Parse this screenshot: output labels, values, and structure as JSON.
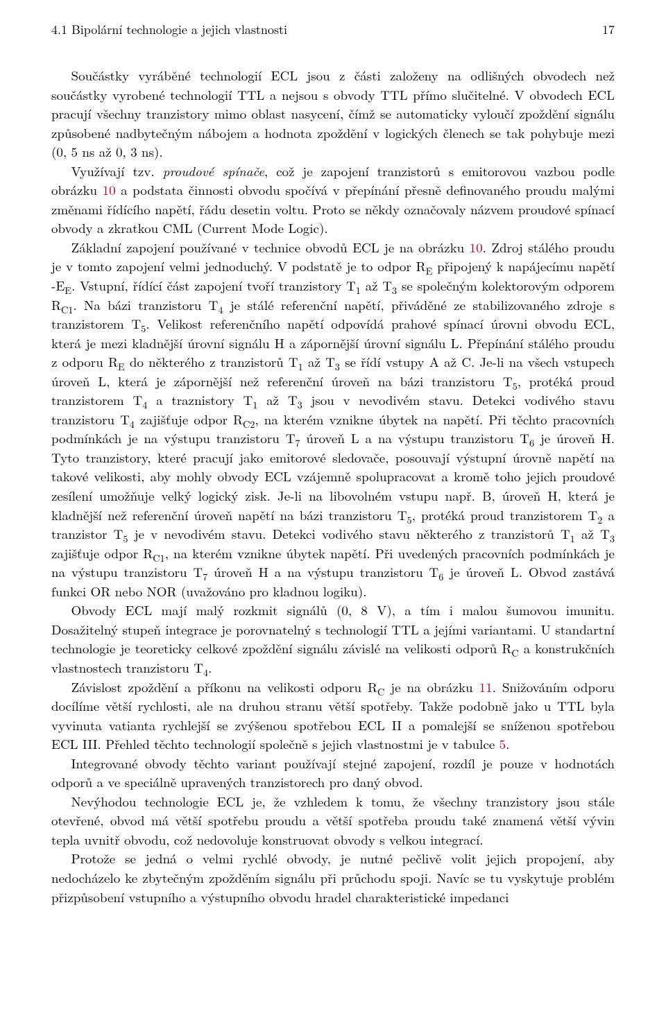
{
  "header": {
    "section": "4.1   Bipolární technologie a jejich vlastnosti",
    "page": "17"
  },
  "body": {
    "p1_a": "Součástky vyráběné technologií ECL jsou z části založeny na odlišných obvodech než součástky vyrobené technologií TTL a nejsou s obvody TTL přímo slučitelné. V obvodech ECL pracují všechny tranzistory mimo oblast nasycení, čímž se automaticky vyloučí zpoždění signálu způsobené nadbytečným nábojem a hodnota zpoždění v logických členech se tak pohybuje mezi (0, 5 ns až 0, 3 ns).",
    "p2_lead": "Využívají tzv. ",
    "p2_em": "proudové spínače",
    "p2_aft_em": ", což je zapojení tranzistorů s emitorovou vazbou podle obrázku ",
    "p2_link1": "10",
    "p2_tail": " a podstata činnosti obvodu spočívá v přepínání přesně definovaného proudu malými změnami řídícího napětí, řádu desetin voltu. Proto se někdy označovaly názvem proudové spínací obvody a zkratkou CML (Current Mode Logic).",
    "p3_a": "Základní zapojení používané v technice obvodů ECL je na obrázku ",
    "p3_link1": "10",
    "p3_b": ". Zdroj stálého proudu je v tomto zapojení velmi jednoduchý. V podstatě je to odpor R",
    "p3_sub1": "E",
    "p3_c": " připojený k  napájecímu napětí -E",
    "p3_sub2": "E",
    "p3_d": ". Vstupní, řídící část zapojení tvoří tranzistory T",
    "p3_sub3": "1",
    "p3_e": " až T",
    "p3_sub4": "3",
    "p3_f": " se společným kolektorovým odporem R",
    "p3_sub5": "C1",
    "p3_g": ". Na bázi tranzistoru T",
    "p3_sub6": "4",
    "p3_h": " je stálé referenční napětí, přiváděné ze stabilizovaného zdroje s tranzistorem T",
    "p3_sub7": "5",
    "p3_i": ". Velikost referenčního napětí odpovídá prahové spínací úrovni obvodu ECL, která je mezi kladnější úrovní signálu H a zápornější úrovní signálu L. Přepínání stálého proudu z odporu R",
    "p3_sub8": "E",
    "p3_j": " do některého z tranzistorů T",
    "p3_sub9": "1",
    "p3_k": " až T",
    "p3_sub10": "3",
    "p3_l": " se řídí vstupy A až C. Je-li na všech vstupech úroveň L, která je zápornější než referenční úroveň na bázi tranzistoru T",
    "p3_sub11": "5",
    "p3_m": ", protéká proud tranzistorem T",
    "p3_sub12": "4",
    "p3_n": " a traznistory T",
    "p3_sub13": "1",
    "p3_o": " až T",
    "p3_sub14": "3",
    "p3_p": " jsou v nevodivém stavu. Detekci vodivého stavu tranzistoru T",
    "p3_sub15": "4",
    "p3_q": " zajišťuje odpor R",
    "p3_sub16": "C2",
    "p3_r": ", na kterém vznikne úbytek na napětí. Při těchto pracovních podmínkách je na výstupu tranzistoru T",
    "p3_sub17": "7",
    "p3_s": " úroveň L a na výstupu tranzistoru T",
    "p3_sub18": "6",
    "p3_t": " je úroveň H. Tyto tranzistory, které pracují jako emitorové sledovače, posouvají výstupní úrovně napětí na takové velikosti, aby mohly obvody ECL vzájemně spolupracovat a kromě toho jejich proudové zesílení umožňuje velký logický zisk. Je-li na libovolném vstupu např. B, úroveň H, která je kladnější než referenční úroveň napětí na  bázi tranzistoru T",
    "p3_sub19": "5",
    "p3_u": ", protéká proud tranzistorem T",
    "p3_sub20": "2",
    "p3_v": " a tranzistor T",
    "p3_sub21": "5",
    "p3_w": " je v nevodivém stavu. Detekci vodivého stavu některého z tranzistorů T",
    "p3_sub22": "1",
    "p3_x": " až T",
    "p3_sub23": "3",
    "p3_y": " zajišťuje odpor R",
    "p3_sub24": "C1",
    "p3_z": ", na kterém vznikne úbytek napětí. Při uvedených pracovních podmínkách je na výstupu tranzistoru T",
    "p3_sub25": "7",
    "p3_aa": " úroveň H a na výstupu tranzistoru T",
    "p3_sub26": "6",
    "p3_ab": " je úroveň L. Obvod zastává funkci OR nebo NOR (uvažováno pro kladnou logiku).",
    "p4_a": "Obvody ECL mají malý rozkmit signálů (0, 8 V), a tím i malou šumovou imunitu. Dosažitelný stupeň integrace je porovnatelný s technologií TTL a jejími variantami. U standartní technologie je teoreticky celkové zpoždění signálu závislé na velikosti odporů R",
    "p4_sub1": "C",
    "p4_b": " a konstrukčních vlastnostech tranzistoru T",
    "p4_sub2": "4",
    "p4_c": ".",
    "p5_a": "Závislost zpoždění a příkonu na velikosti odporu R",
    "p5_sub1": "C",
    "p5_b": " je na obrázku ",
    "p5_link1": "11",
    "p5_c": ". Snižováním odporu docílíme větší rychlosti, ale na druhou stranu větší spotřeby. Takže podobně jako u TTL byla vyvinuta vatianta rychlejší se zvýšenou spotřebou ECL II a pomalejší se sníženou spotřebou ECL III. Přehled těchto technologií společně s jejich vlastnostmi je v tabulce ",
    "p5_link2": "5",
    "p5_d": ".",
    "p6": "Integrované obvody těchto variant používají stejné zapojení, rozdíl je pouze v hodnotách odporů a ve speciálně upravených tranzistorech pro daný obvod.",
    "p7": "Nevýhodou technologie ECL je, že vzhledem k tomu, že všechny tranzistory jsou stále otevřené, obvod má větší spotřebu proudu a větší spotřeba proudu také znamená větší vývin tepla uvnitř obvodu, což nedovoluje konstruovat obvody s velkou integrací.",
    "p8": "Protože se jedná o velmi rychlé obvody, je nutné pečlivě volit jejich propojení, aby nedocházelo ke zbytečným zpožděním signálu při průchodu spoji. Navíc se tu vyskytuje problém přizpůsobení vstupního a výstupního obvodu hradel charakteristické impedanci"
  }
}
